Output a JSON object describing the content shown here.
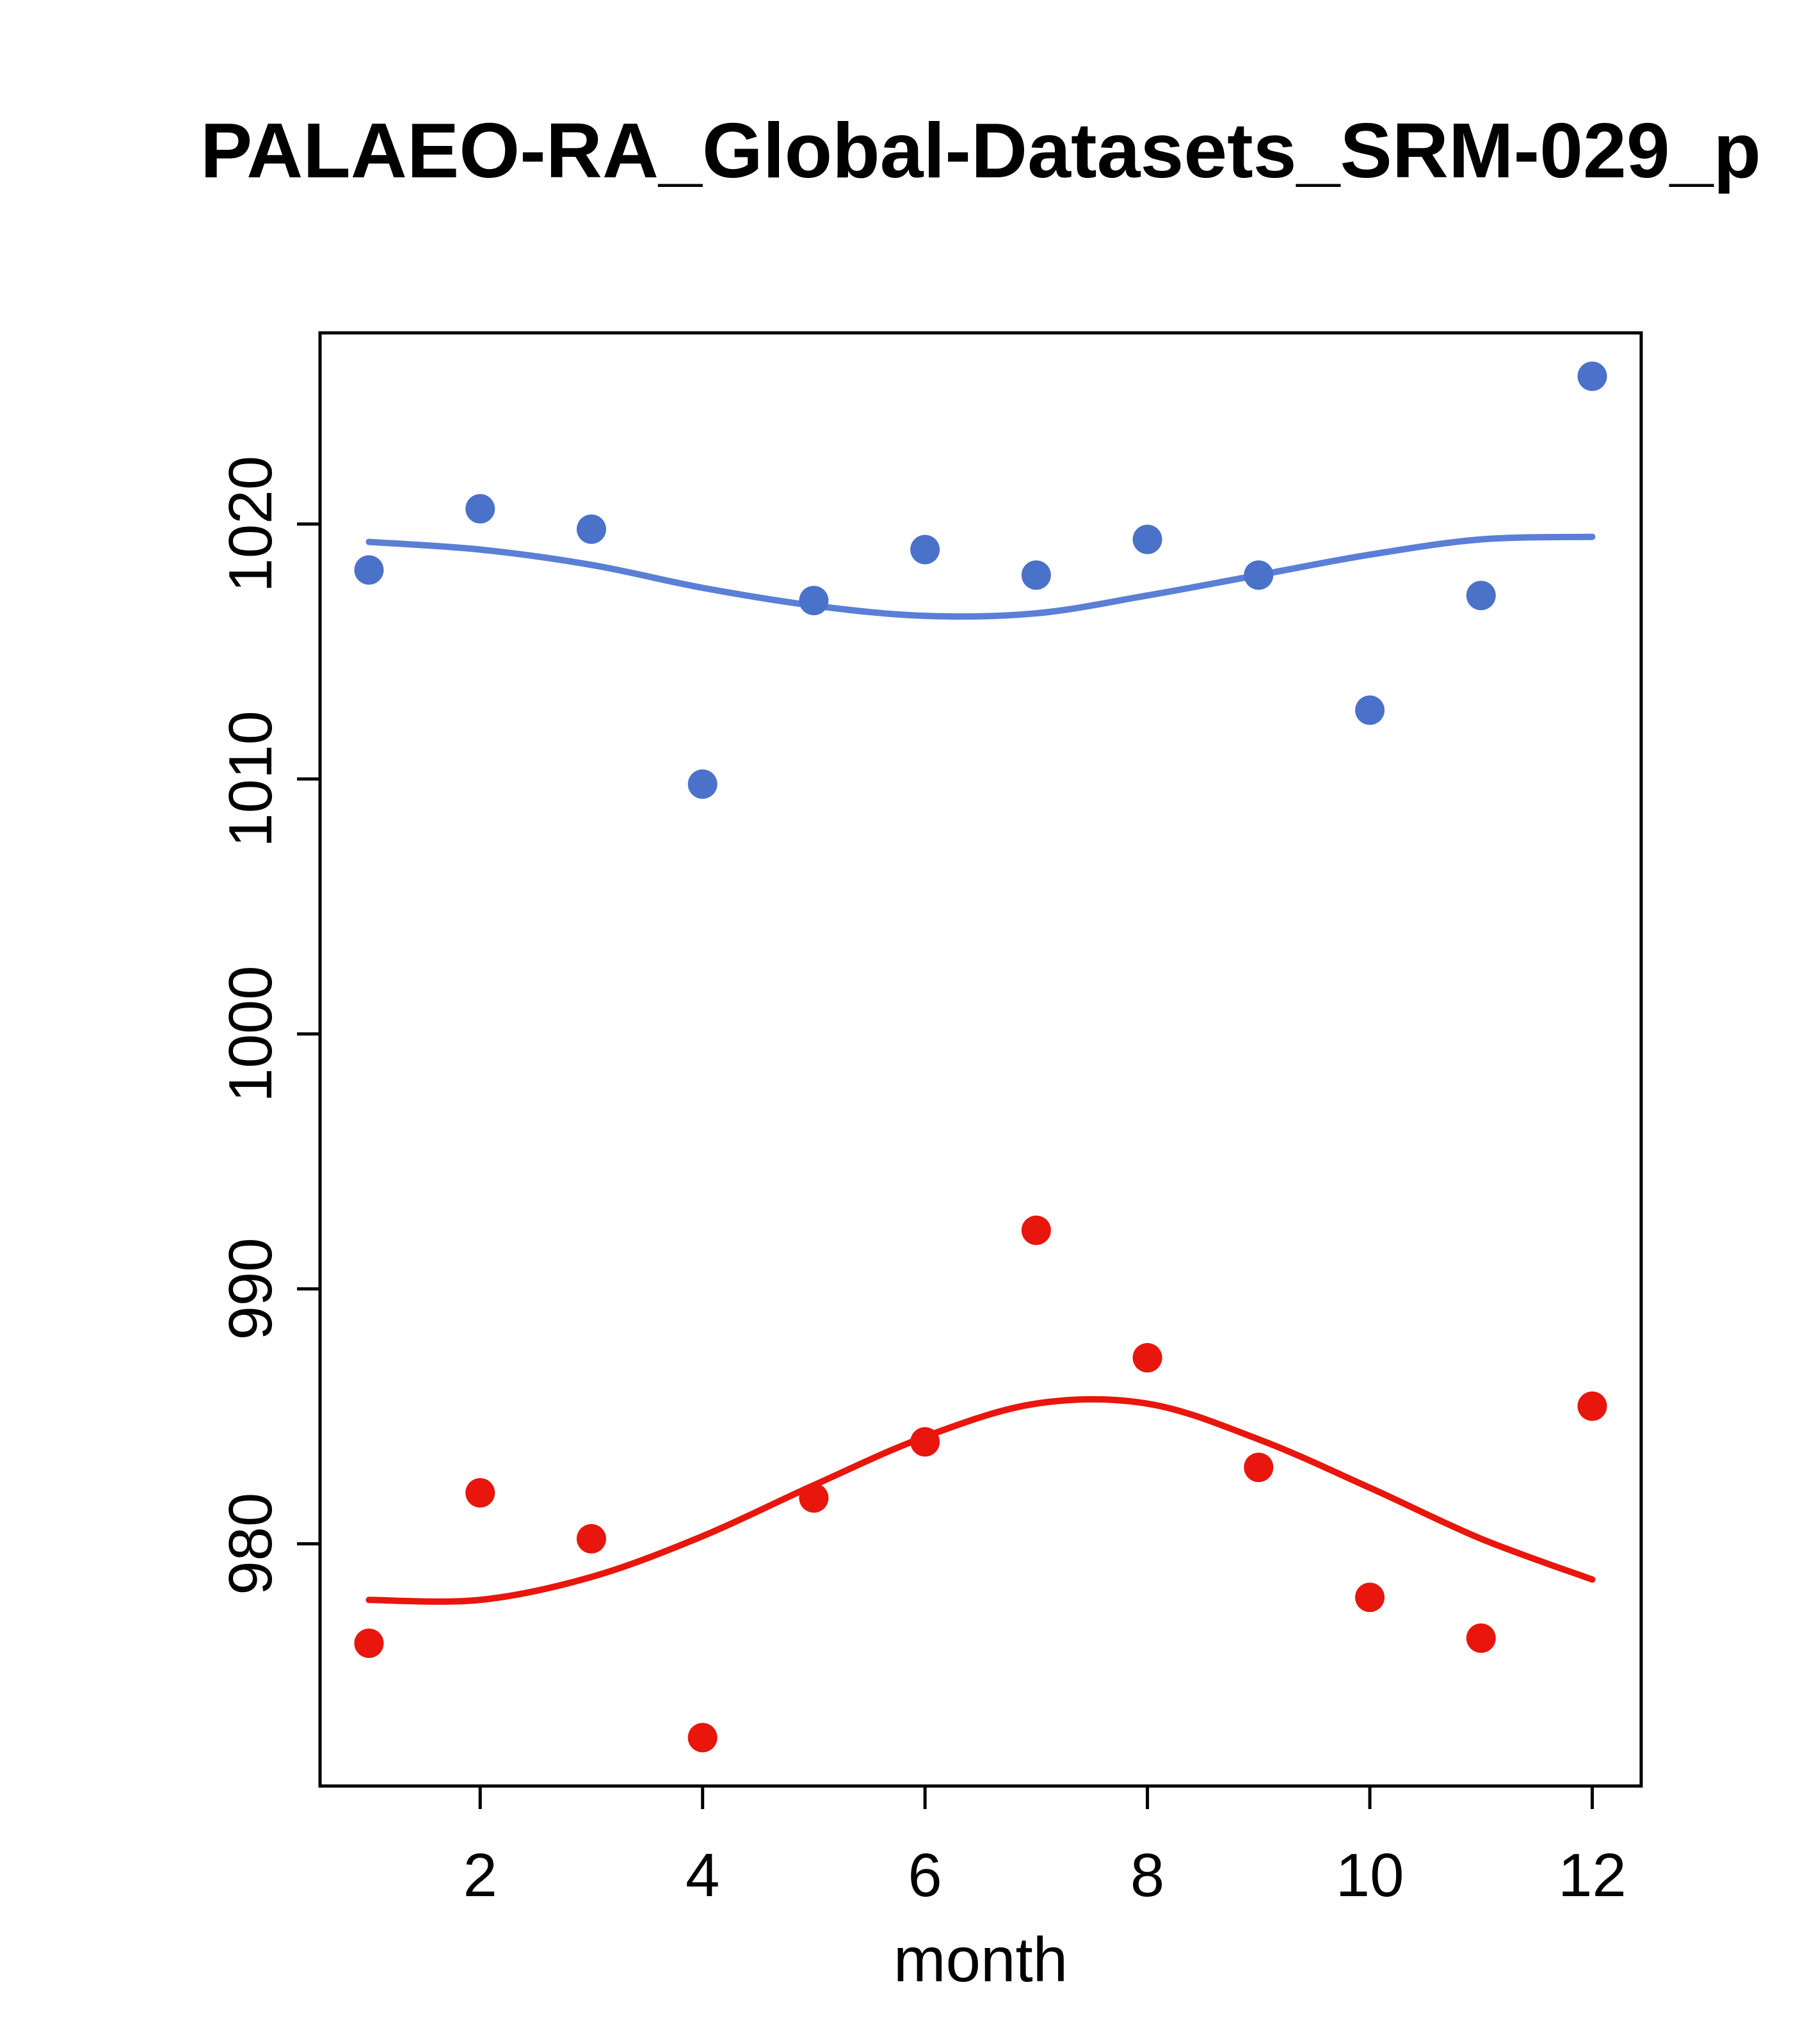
{
  "chart_data": {
    "type": "scatter",
    "title": "PALAEO-RA_Global-Datasets_SRM-029_p",
    "xlabel": "month",
    "ylabel": "",
    "x": [
      1,
      2,
      3,
      4,
      5,
      6,
      7,
      8,
      9,
      10,
      11,
      12
    ],
    "series": [
      {
        "name": "upper-points",
        "kind": "points",
        "color": "#4a72c9",
        "values": [
          1018.2,
          1020.6,
          1019.8,
          1009.8,
          1017.0,
          1019.0,
          1018.0,
          1019.4,
          1018.0,
          1012.7,
          1017.2,
          1025.8
        ]
      },
      {
        "name": "upper-smooth",
        "kind": "line",
        "color": "#5b7fd6",
        "values": [
          1019.3,
          1019.0,
          1018.4,
          1017.5,
          1016.8,
          1016.4,
          1016.5,
          1017.2,
          1018.0,
          1018.8,
          1019.4,
          1019.5
        ]
      },
      {
        "name": "lower-points",
        "kind": "points",
        "color": "#e8160c",
        "values": [
          976.1,
          982.0,
          980.2,
          972.4,
          981.8,
          984.0,
          992.3,
          987.3,
          983.0,
          977.9,
          976.3,
          985.4
        ]
      },
      {
        "name": "lower-smooth",
        "kind": "line",
        "color": "#e8160c",
        "values": [
          977.8,
          977.8,
          978.7,
          980.3,
          982.3,
          984.2,
          985.5,
          985.5,
          984.1,
          982.2,
          980.2,
          978.6
        ]
      }
    ],
    "x_ticks": [
      2,
      4,
      6,
      8,
      10,
      12
    ],
    "y_ticks": [
      980,
      990,
      1000,
      1010,
      1020
    ],
    "xlim": [
      0.56,
      12.44
    ],
    "ylim": [
      970.5,
      1027.5
    ],
    "grid": false,
    "legend": "none",
    "axis_color": "#000000",
    "background": "#ffffff"
  }
}
